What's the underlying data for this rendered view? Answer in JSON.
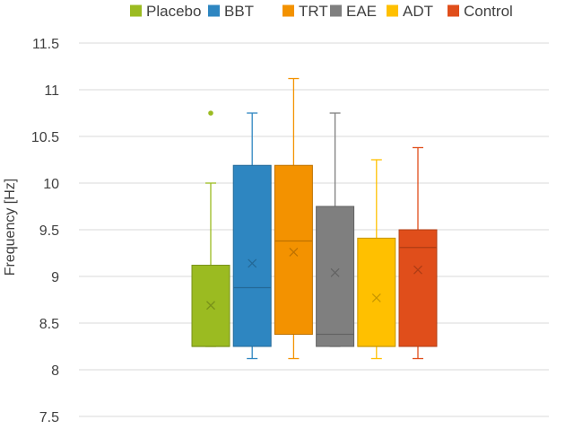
{
  "chart_data": {
    "type": "box",
    "title": "",
    "xlabel": "",
    "ylabel": "Frequency [Hz]",
    "ylim": [
      7.5,
      11.5
    ],
    "yticks": [
      7.5,
      8,
      8.5,
      9,
      9.5,
      10,
      10.5,
      11,
      11.5
    ],
    "ytick_labels": [
      "7.5",
      "8",
      "8.5",
      "9",
      "9.5",
      "10",
      "10.5",
      "11",
      "11.5"
    ],
    "grid": true,
    "legend_position": "top",
    "series": [
      {
        "name": "Placebo",
        "color": "#9BBB21",
        "whisker_low": 8.25,
        "q1": 8.25,
        "median": 8.25,
        "q3": 9.12,
        "whisker_high": 10.0,
        "mean": 8.69,
        "outliers": [
          10.75
        ]
      },
      {
        "name": "BBT",
        "color": "#2E86C1",
        "whisker_low": 8.12,
        "q1": 8.25,
        "median": 8.88,
        "q3": 10.19,
        "whisker_high": 10.75,
        "mean": 9.14,
        "outliers": []
      },
      {
        "name": "TRT",
        "color": "#F39200",
        "whisker_low": 8.12,
        "q1": 8.38,
        "median": 9.38,
        "q3": 10.19,
        "whisker_high": 11.12,
        "mean": 9.26,
        "outliers": []
      },
      {
        "name": "EAE",
        "color": "#7F7F7F",
        "whisker_low": 8.25,
        "q1": 8.25,
        "median": 8.38,
        "q3": 9.75,
        "whisker_high": 10.75,
        "mean": 9.04,
        "outliers": []
      },
      {
        "name": "ADT",
        "color": "#FFC000",
        "whisker_low": 8.12,
        "q1": 8.25,
        "median": 8.25,
        "q3": 9.41,
        "whisker_high": 10.25,
        "mean": 8.77,
        "outliers": []
      },
      {
        "name": "Control",
        "color": "#E04E1B",
        "whisker_low": 8.12,
        "q1": 8.25,
        "median": 9.31,
        "q3": 9.5,
        "whisker_high": 10.38,
        "mean": 9.07,
        "outliers": []
      }
    ]
  }
}
